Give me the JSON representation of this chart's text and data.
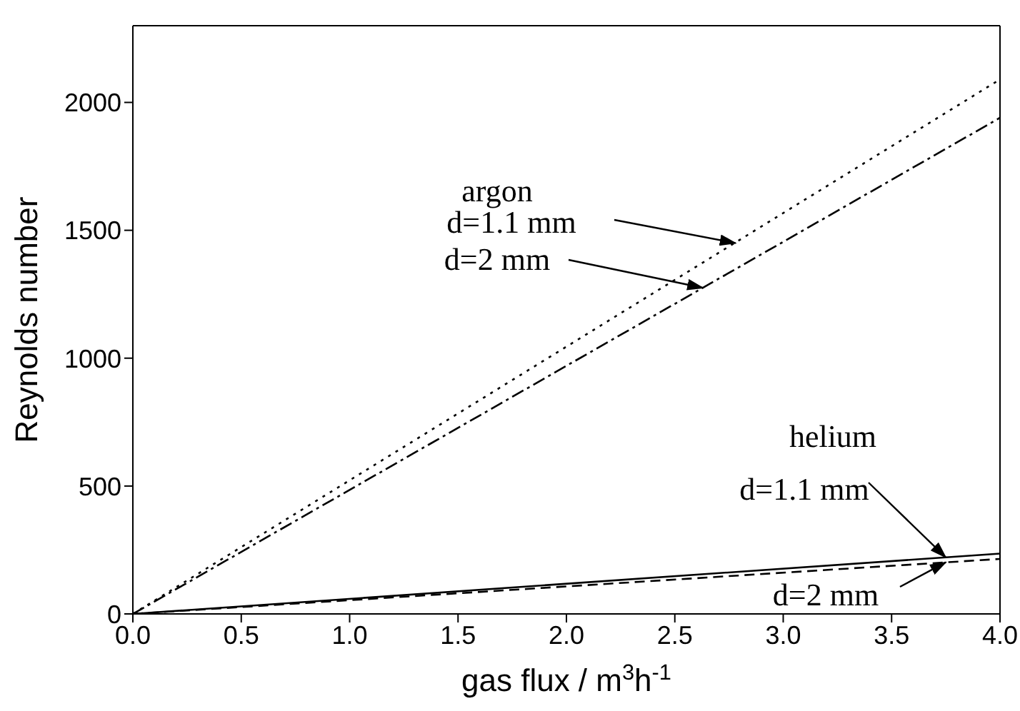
{
  "chart_data": {
    "type": "line",
    "xlabel": "gas flux / m$^{3}$h$^{-1}$",
    "ylabel": "Reynolds number",
    "xlim": [
      0,
      4
    ],
    "xticks": [
      {
        "value": 0,
        "label": "0.0"
      },
      0.5,
      {
        "value": 1,
        "label": "1.0"
      },
      1.5,
      {
        "value": 2,
        "label": "2.0"
      },
      2.5,
      {
        "value": 3,
        "label": "3.0"
      },
      3.5,
      {
        "value": 4,
        "label": "4.0"
      }
    ],
    "ylim": [
      0,
      2300
    ],
    "yticks": [
      0,
      500,
      1000,
      1500,
      2000
    ],
    "x": [
      0,
      4
    ],
    "series": [
      {
        "color": "#000000",
        "line_style": "dotted",
        "values": [
          0,
          2090
        ]
      },
      {
        "color": "#000000",
        "line_style": "dashdot",
        "values": [
          0,
          1940
        ]
      },
      {
        "color": "#000000",
        "line_style": "solid",
        "values": [
          0,
          236
        ]
      },
      {
        "color": "#000000",
        "line_style": "dashed",
        "values": [
          0,
          215
        ]
      }
    ],
    "annotations": [
      "argon",
      {
        "text": "d=1.1 mm",
        "x": 2.78,
        "y": 1450
      },
      {
        "text": "d=2 mm",
        "x": 2.63,
        "y": 1275
      },
      "helium",
      {
        "text": "d=1.1 mm",
        "x": 3.75,
        "y": 221
      },
      {
        "text": "d=2 mm",
        "x": 3.75,
        "y": 202
      }
    ]
  }
}
